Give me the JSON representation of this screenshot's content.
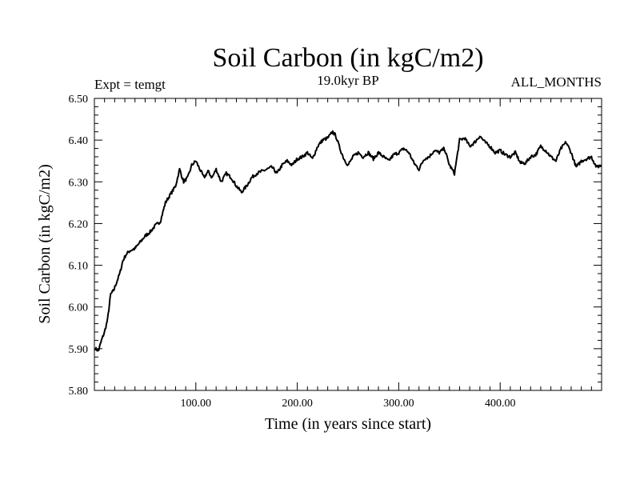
{
  "chart_data": {
    "type": "line",
    "title": "Soil Carbon (in kgC/m2)",
    "subtitle_left": "Expt = temgt",
    "subtitle_center": "19.0kyr BP",
    "subtitle_right": "ALL_MONTHS",
    "xlabel": "Time (in years since start)",
    "ylabel": "Soil Carbon (in kgC/m2)",
    "xlim": [
      0,
      500
    ],
    "ylim": [
      5.8,
      6.5
    ],
    "x_ticks": [
      100,
      200,
      300,
      400
    ],
    "x_tick_labels": [
      "100.00",
      "200.00",
      "300.00",
      "400.00"
    ],
    "y_ticks": [
      5.8,
      5.9,
      6.0,
      6.1,
      6.2,
      6.3,
      6.4,
      6.5
    ],
    "y_tick_labels": [
      "5.80",
      "5.90",
      "6.00",
      "6.10",
      "6.20",
      "6.30",
      "6.40",
      "6.50"
    ],
    "x_minor_step": 10,
    "y_minor_step": 0.02,
    "grid": false,
    "color": "#000000",
    "series": [
      {
        "name": "Soil Carbon",
        "x": [
          1,
          4,
          7,
          10,
          13,
          16,
          19,
          22,
          25,
          28,
          31,
          35,
          40,
          45,
          50,
          55,
          60,
          65,
          70,
          75,
          80,
          84,
          88,
          92,
          96,
          100,
          104,
          108,
          112,
          116,
          120,
          125,
          130,
          135,
          140,
          145,
          150,
          155,
          160,
          165,
          170,
          175,
          180,
          185,
          190,
          195,
          200,
          205,
          210,
          215,
          220,
          225,
          230,
          235,
          238,
          242,
          246,
          250,
          255,
          260,
          265,
          270,
          275,
          280,
          285,
          290,
          295,
          300,
          305,
          310,
          315,
          320,
          325,
          330,
          335,
          340,
          345,
          350,
          355,
          360,
          365,
          370,
          375,
          380,
          385,
          390,
          395,
          400,
          405,
          410,
          415,
          420,
          425,
          430,
          435,
          440,
          445,
          450,
          455,
          460,
          465,
          470,
          475,
          480,
          485,
          490,
          495,
          500
        ],
        "values": [
          5.9,
          5.895,
          5.92,
          5.94,
          5.97,
          6.03,
          6.04,
          6.06,
          6.08,
          6.11,
          6.125,
          6.135,
          6.14,
          6.155,
          6.17,
          6.18,
          6.195,
          6.205,
          6.25,
          6.27,
          6.29,
          6.33,
          6.3,
          6.31,
          6.34,
          6.35,
          6.33,
          6.31,
          6.325,
          6.31,
          6.33,
          6.3,
          6.32,
          6.31,
          6.29,
          6.275,
          6.29,
          6.31,
          6.32,
          6.325,
          6.33,
          6.335,
          6.32,
          6.34,
          6.35,
          6.34,
          6.355,
          6.36,
          6.37,
          6.355,
          6.385,
          6.4,
          6.405,
          6.42,
          6.41,
          6.38,
          6.355,
          6.34,
          6.36,
          6.37,
          6.36,
          6.37,
          6.355,
          6.37,
          6.36,
          6.35,
          6.365,
          6.37,
          6.38,
          6.37,
          6.345,
          6.33,
          6.355,
          6.36,
          6.375,
          6.37,
          6.38,
          6.34,
          6.32,
          6.4,
          6.405,
          6.385,
          6.395,
          6.41,
          6.395,
          6.385,
          6.37,
          6.375,
          6.365,
          6.36,
          6.37,
          6.345,
          6.345,
          6.36,
          6.365,
          6.385,
          6.375,
          6.36,
          6.35,
          6.38,
          6.395,
          6.37,
          6.335,
          6.35,
          6.355,
          6.36,
          6.335,
          6.34
        ]
      }
    ]
  }
}
